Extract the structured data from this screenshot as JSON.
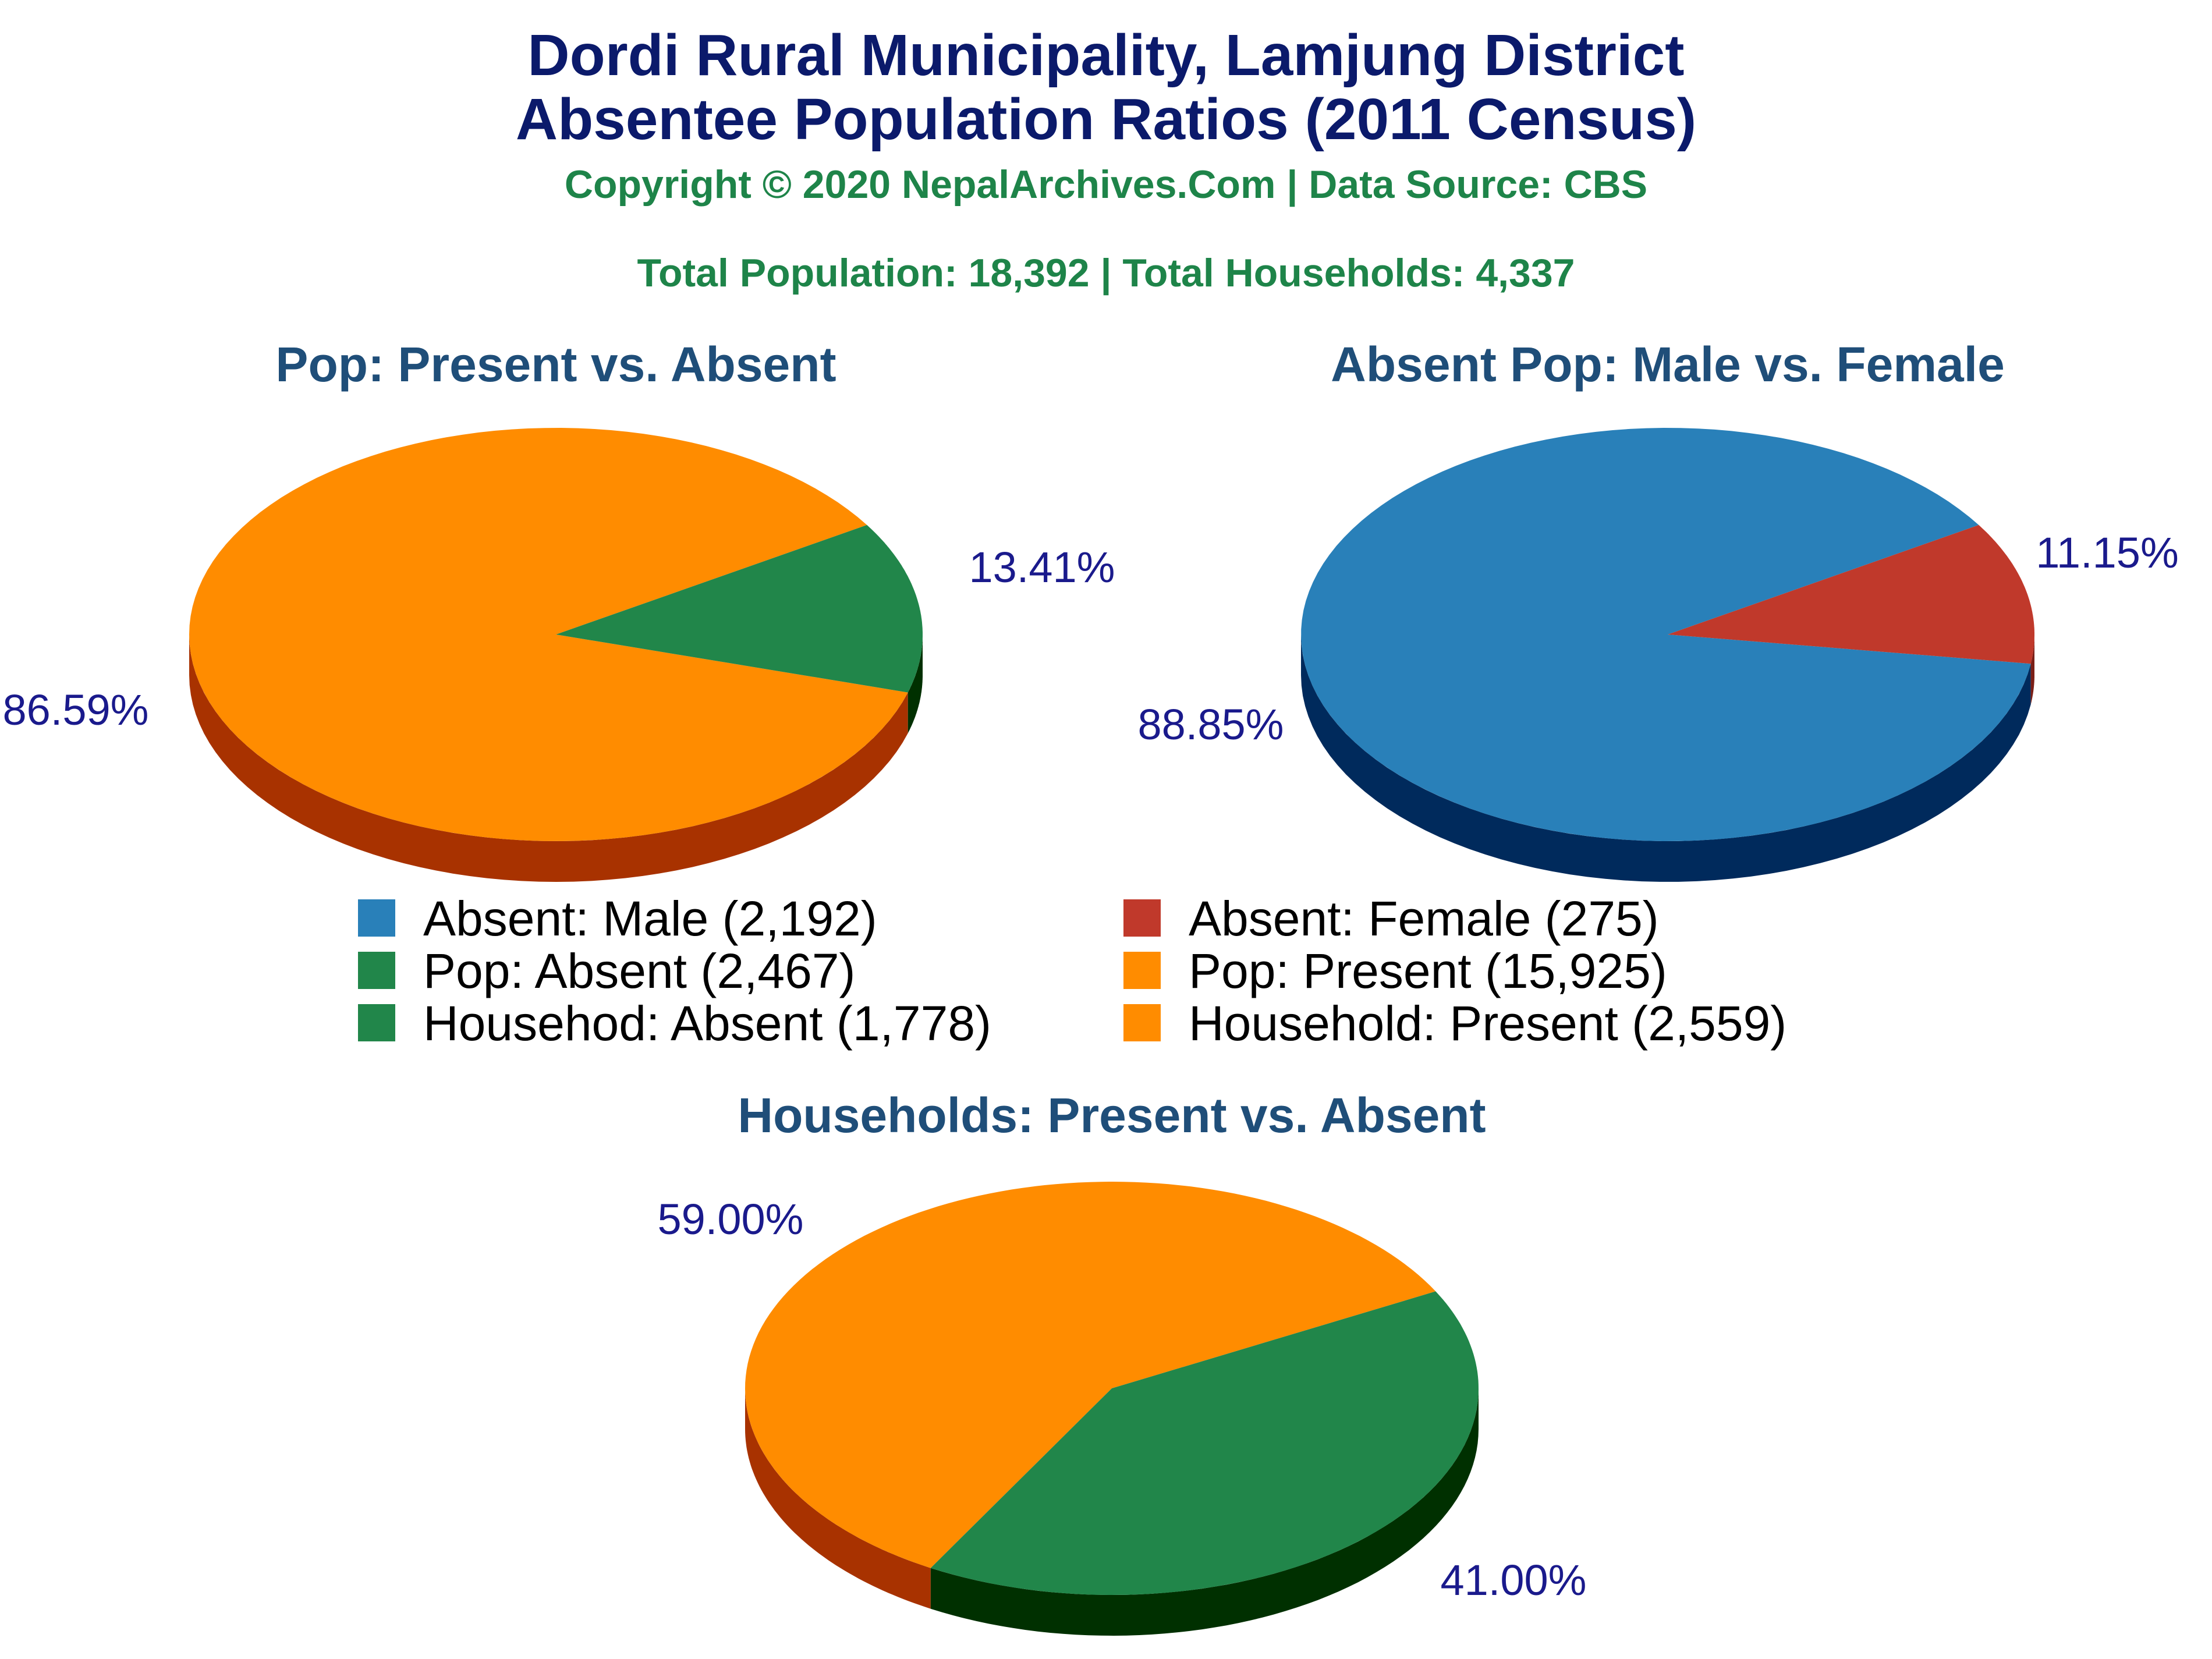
{
  "header": {
    "title_line1": "Dordi Rural Municipality, Lamjung District",
    "title_line2": "Absentee Population Ratios (2011 Census)",
    "copyright": "Copyright © 2020 NepalArchives.Com | Data Source: CBS",
    "totals": "Total Population: 18,392 | Total Households: 4,337"
  },
  "colors": {
    "male": "#2980b9",
    "male_side": "#002a5c",
    "female": "#c0392b",
    "green": "#21864a",
    "green_side": "#003000",
    "orange": "#ff8c00",
    "orange_side": "#a83200"
  },
  "legend": [
    {
      "label": "Absent: Male (2,192)",
      "color": "#2980b9"
    },
    {
      "label": "Absent: Female (275)",
      "color": "#c0392b"
    },
    {
      "label": "Pop: Absent (2,467)",
      "color": "#21864a"
    },
    {
      "label": "Pop: Present (15,925)",
      "color": "#ff8c00"
    },
    {
      "label": "Househod: Absent (1,778)",
      "color": "#21864a"
    },
    {
      "label": "Household: Present (2,559)",
      "color": "#ff8c00"
    }
  ],
  "chart_data": [
    {
      "type": "pie",
      "title": "Pop: Present vs. Absent",
      "slices": [
        {
          "label": "Pop: Present",
          "value": 15925,
          "percent": 86.59,
          "percent_label": "86.59%",
          "color": "#ff8c00",
          "side_color": "#a83200"
        },
        {
          "label": "Pop: Absent",
          "value": 2467,
          "percent": 13.41,
          "percent_label": "13.41%",
          "color": "#21864a",
          "side_color": "#003000"
        }
      ]
    },
    {
      "type": "pie",
      "title": "Absent Pop: Male vs. Female",
      "slices": [
        {
          "label": "Absent: Male",
          "value": 2192,
          "percent": 88.85,
          "percent_label": "88.85%",
          "color": "#2980b9",
          "side_color": "#002a5c"
        },
        {
          "label": "Absent: Female",
          "value": 275,
          "percent": 11.15,
          "percent_label": "11.15%",
          "color": "#c0392b",
          "side_color": "#7b1f17"
        }
      ]
    },
    {
      "type": "pie",
      "title": "Households: Present vs. Absent",
      "slices": [
        {
          "label": "Household: Present",
          "value": 2559,
          "percent": 59.0,
          "percent_label": "59.00%",
          "color": "#ff8c00",
          "side_color": "#a83200"
        },
        {
          "label": "Househod: Absent",
          "value": 1778,
          "percent": 41.0,
          "percent_label": "41.00%",
          "color": "#21864a",
          "side_color": "#003000"
        }
      ]
    }
  ]
}
